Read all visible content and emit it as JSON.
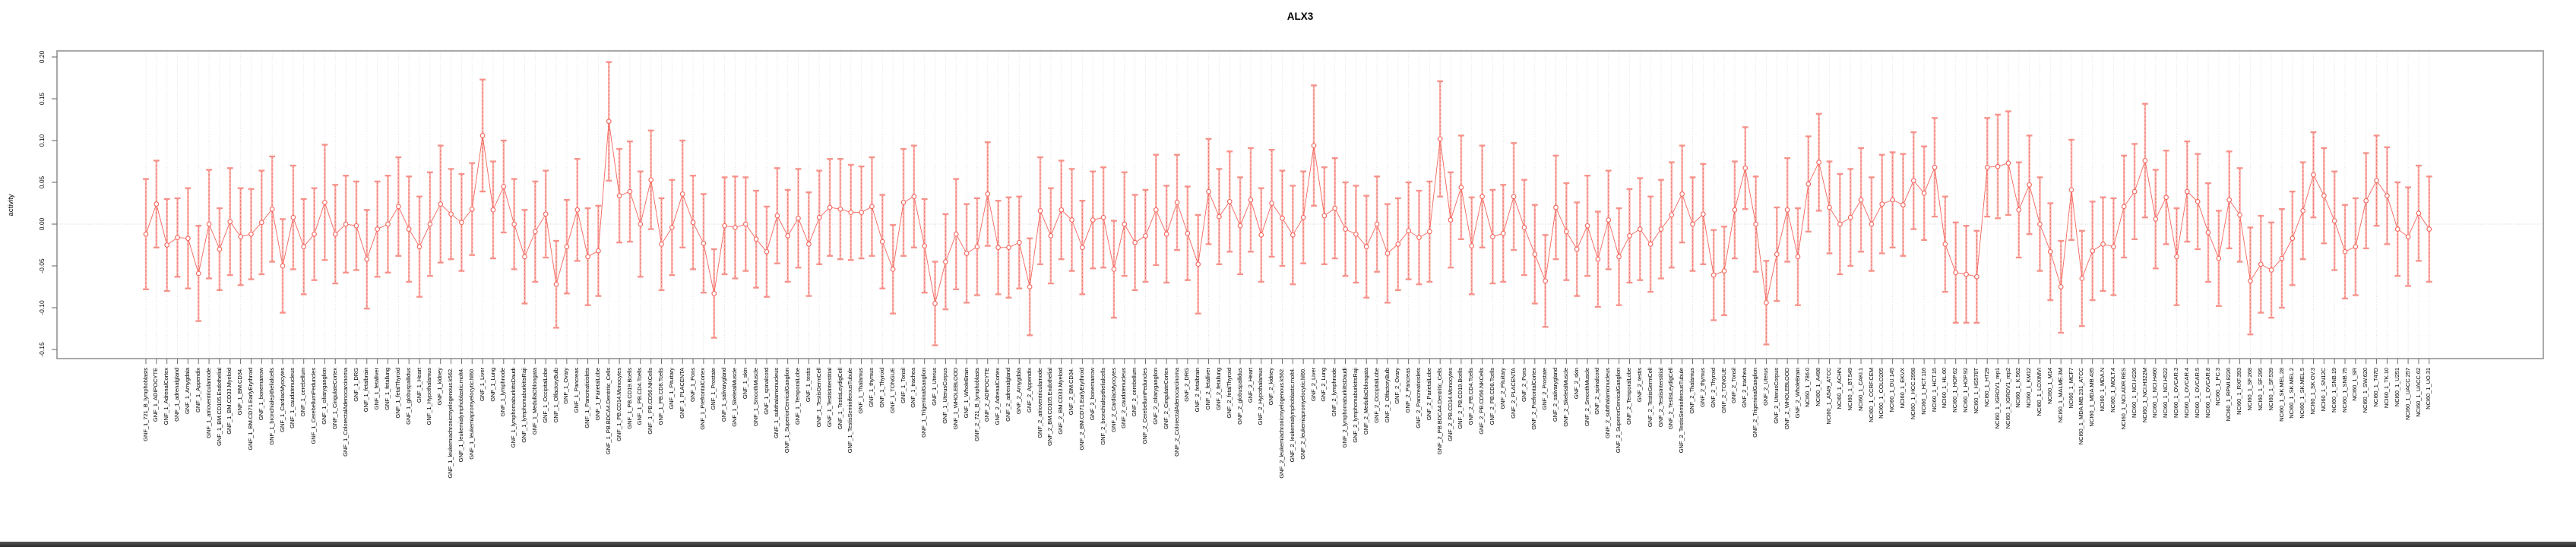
{
  "page": {
    "title": "ALX3"
  },
  "chart_data": {
    "type": "line",
    "subtype": "point-with-error-bars",
    "title": "ALX3",
    "xlabel": "",
    "ylabel": "activity",
    "ylim": [
      -0.165,
      0.205
    ],
    "ytick_labels": [
      "0.20",
      "0.15",
      "0.10",
      "0.05",
      "0.00",
      "-0.05",
      "-0.10",
      "-0.15"
    ],
    "ytick_values": [
      0.2,
      0.15,
      0.1,
      0.05,
      0.0,
      -0.05,
      -0.1,
      -0.15
    ],
    "grid": "dotted vertical line at every sample; dotted horizontal line at y=0",
    "legend_position": "none",
    "n_samples": 218,
    "colors": {
      "series": "#f4655c",
      "errorbar_heavy": "#f8aba5",
      "errorbar_dash": "#f4736a",
      "errorbar_cap": "#f69189",
      "grid": "#dcdcdc",
      "zero_line": "#cccccc",
      "box": "#9a9a9a",
      "tick": "#6e6e6e"
    },
    "categories": [
      "GNF_1_721_B_lymphoblasts",
      "GNF_1_ADIPOCYTE",
      "GNF_1_AdrenalCortex",
      "GNF_1_adrenalgland",
      "GNF_1_Amygdala",
      "GNF_1_Appendix",
      "GNF_1_atrioventricularnode",
      "GNF_1_BM.CD105.Endothelial",
      "GNF_1_BM.CD33.Myeloid",
      "GNF_1_BM.CD34.",
      "GNF_1_BM.CD71.EarlyErythroid",
      "GNF_1_bonemarrow",
      "GNF_1_bronchialepithelialcells",
      "GNF_1_CardiacMyocytes",
      "GNF_1_caudatenucleus",
      "GNF_1_cerebellum",
      "GNF_1_CerebellumPeduncles",
      "GNF_1_ciliaryganglion",
      "GNF_1_CingulateCortex",
      "GNF_1_ColorectalAdenocarcinoma",
      "GNF_1_DRG",
      "GNF_1_fetalbrain",
      "GNF_1_fetalliver",
      "GNF_1_fetallung",
      "GNF_1_fetalThyroid",
      "GNF_1_globuspallidus",
      "GNF_1_Heart",
      "GNF_1_Hypothalamus",
      "GNF_1_kidney",
      "GNF_1_leukemiachronicmyelogenous.k562.",
      "GNF_1_leukemialymphoblastic.molt4.",
      "GNF_1_leukemiapromyelocytic.hl60.",
      "GNF_1_Liver",
      "GNF_1_Lung",
      "GNF_1_lymphnode",
      "GNF_1_lymphomaburkittsDaudi",
      "GNF_1_lymphomaburkittsRaji",
      "GNF_1_MedullaOblongata",
      "GNF_1_OccipitalLobe",
      "GNF_1_OlfactoryBulb",
      "GNF_1_Ovary",
      "GNF_1_Pancreas",
      "GNF_1_Pancreaticislets",
      "GNF_1_ParietalLobe",
      "GNF_1_PB.BDCA4.Dentritic_Cells",
      "GNF_1_PB.CD14.Monocytes",
      "GNF_1_PB.CD19.Bcells",
      "GNF_1_PB.CD4.Tcells",
      "GNF_1_PB.CD56.NKCells",
      "GNF_1_PB.CD8.Tcells",
      "GNF_1_Pituitary",
      "GNF_1_PLACENTA",
      "GNF_1_Pons",
      "GNF_1_PrefrontalCortex",
      "GNF_1_Prostate",
      "GNF_1_salivarygland",
      "GNF_1_SkeletalMuscle",
      "GNF_1_skin",
      "GNF_1_SmoothMuscle",
      "GNF_1_spinalcord",
      "GNF_1_subthalamicnucleus",
      "GNF_1_SuperiorCervicalGanglion",
      "GNF_1_TemporalLobe",
      "GNF_1_testis",
      "GNF_1_TestisGermCell",
      "GNF_1_TestisInterstitial",
      "GNF_1_TestisLeydigCell",
      "GNF_1_TestisSeminiferousTubule",
      "GNF_1_Thalamus",
      "GNF_1_thymus",
      "GNF_1_Thyroid",
      "GNF_1_TONGUE",
      "GNF_1_Tonsil",
      "GNF_1_trachea",
      "GNF_1_TrigeminalGanglion",
      "GNF_1_Uterus",
      "GNF_1_UterusCorpus",
      "GNF_1_WHOLEBLOOD",
      "GNF_1_WholeBrain",
      "GNF_2_721_B_lymphoblasts",
      "GNF_2_ADIPOCYTE",
      "GNF_2_AdrenalCortex",
      "GNF_2_adrenalgland",
      "GNF_2_Amygdala",
      "GNF_2_Appendix",
      "GNF_2_atrioventricularnode",
      "GNF_2_BM.CD105.Endothelial",
      "GNF_2_BM.CD33.Myeloid",
      "GNF_2_BM.CD34.",
      "GNF_2_BM.CD71.EarlyErythroid",
      "GNF_2_bonemarrow",
      "GNF_2_bronchialepithelialcells",
      "GNF_2_CardiacMyocytes",
      "GNF_2_caudatenucleus",
      "GNF_2_cerebellum",
      "GNF_2_CerebellumPeduncles",
      "GNF_2_ciliaryganglion",
      "GNF_2_CingulateCortex",
      "GNF_2_ColorectalAdenocarcinoma",
      "GNF_2_DRG",
      "GNF_2_fetalbrain",
      "GNF_2_fetalliver",
      "GNF_2_fetallung",
      "GNF_2_fetalThyroid",
      "GNF_2_globuspallidus",
      "GNF_2_Heart",
      "GNF_2_Hypothalamus",
      "GNF_2_kidney",
      "GNF_2_leukemiachronicmyelogenous.k562.",
      "GNF_2_leukemialymphoblastic.molt4.",
      "GNF_2_leukemiapromyelocytic.hl60.",
      "GNF_2_Liver",
      "GNF_2_Lung",
      "GNF_2_lymphnode",
      "GNF_2_lymphomaburkittsDaudi",
      "GNF_2_lymphomaburkittsRaji",
      "GNF_2_MedullaOblongata",
      "GNF_2_OccipitalLobe",
      "GNF_2_OlfactoryBulb",
      "GNF_2_Ovary",
      "GNF_2_Pancreas",
      "GNF_2_Pancreaticislets",
      "GNF_2_ParietalLobe",
      "GNF_2_PB.BDCA4.Dentritic_Cells",
      "GNF_2_PB.CD14.Monocytes",
      "GNF_2_PB.CD19.Bcells",
      "GNF_2_PB.CD4.Tcells",
      "GNF_2_PB.CD56.NKCells",
      "GNF_2_PB.CD8.Tcells",
      "GNF_2_Pituitary",
      "GNF_2_PLACENTA",
      "GNF_2_Pons",
      "GNF_2_PrefrontalCortex",
      "GNF_2_Prostate",
      "GNF_2_salivarygland",
      "GNF_2_SkeletalMuscle",
      "GNF_2_skin",
      "GNF_2_SmoothMuscle",
      "GNF_2_spinalcord",
      "GNF_2_subthalamicnucleus",
      "GNF_2_SuperiorCervicalGanglion",
      "GNF_2_TemporalLobe",
      "GNF_2_testis",
      "GNF_2_TestisGermCell",
      "GNF_2_TestisInterstitial",
      "GNF_2_TestisLeydigCell",
      "GNF_2_TestisSeminiferousTubule",
      "GNF_2_Thalamus",
      "GNF_2_thymus",
      "GNF_2_Thyroid",
      "GNF_2_TONGUE",
      "GNF_2_Tonsil",
      "GNF_2_trachea",
      "GNF_2_TrigeminalGanglion",
      "GNF_2_Uterus",
      "GNF_2_UterusCorpus",
      "GNF_2_WHOLEBLOOD",
      "GNF_2_WholeBrain",
      "NCI60_1_786.0",
      "NCI60_1_A498",
      "NCI60_1_A549_ATCC",
      "NCI60_1_ACHN",
      "NCI60_1_BT.549",
      "NCI60_1_CAKI.1",
      "NCI60_1_CCRF.CEM",
      "NCI60_1_COLO205",
      "NCI60_1_DU.145",
      "NCI60_1_EKVX",
      "NCI60_1_HCC.2998",
      "NCI60_1_HCT.116",
      "NCI60_1_HCT.15",
      "NCI60_1_HL.60",
      "NCI60_1_HOP.62",
      "NCI60_1_HOP.92",
      "NCI60_1_HS578T",
      "NCI60_1_HT29",
      "NCI60_1_IGROV1_rep1",
      "NCI60_1_IGROV1_rep2",
      "NCI60_1_K.562",
      "NCI60_1_KM12",
      "NCI60_1_LOXIMVI",
      "NCI60_1_M14",
      "NCI60_1_MALME.3M",
      "NCI60_1_MCF7",
      "NCI60_1_MDA.MB.231_ATCC",
      "NCI60_1_MDA.MB.435",
      "NCI60_1_MDA.N",
      "NCI60_1_MOLT.4",
      "NCI60_1_NCI.ADR.RES",
      "NCI60_1_NCI.H226",
      "NCI60_1_NCI.H322M",
      "NCI60_1_NCI.H460",
      "NCI60_1_NCI.H522",
      "NCI60_1_OVCAR.3",
      "NCI60_1_OVCAR.4",
      "NCI60_1_OVCAR.5",
      "NCI60_1_OVCAR.8",
      "NCI60_1_PC.3",
      "NCI60_1_RPMI.8226",
      "NCI60_1_RXF.393",
      "NCI60_1_SF.268",
      "NCI60_1_SF.295",
      "NCI60_1_SF.539",
      "NCI60_1_SK.MEL.28",
      "NCI60_1_SK.MEL.2",
      "NCI60_1_SK.MEL.5",
      "NCI60_1_SK.OV.3",
      "NCI60_1_SN12C",
      "NCI60_1_SNB.19",
      "NCI60_1_SNB.75",
      "NCI60_1_SR",
      "NCI60_1_SW.620",
      "NCI60_1_T47D",
      "NCI60_1_TK.10",
      "NCI60_1_U251",
      "NCI60_1_UACC.257",
      "NCI60_1_UACC.62",
      "NCI60_1_UO.31"
    ],
    "means": [
      -0.012,
      0.024,
      -0.025,
      -0.016,
      -0.017,
      -0.059,
      0.0,
      -0.03,
      0.003,
      -0.015,
      -0.012,
      0.002,
      0.018,
      -0.05,
      0.008,
      -0.027,
      -0.012,
      0.026,
      -0.012,
      0.0,
      -0.002,
      -0.042,
      -0.006,
      0.0,
      0.021,
      -0.006,
      -0.027,
      0.0,
      0.024,
      0.012,
      0.002,
      0.018,
      0.106,
      0.017,
      0.045,
      0.0,
      -0.039,
      -0.009,
      0.012,
      -0.072,
      -0.027,
      0.017,
      -0.039,
      -0.032,
      0.123,
      0.034,
      0.039,
      0.0,
      0.053,
      -0.024,
      -0.004,
      0.036,
      0.002,
      -0.023,
      -0.083,
      -0.002,
      -0.004,
      0.0,
      -0.018,
      -0.033,
      0.01,
      -0.014,
      0.007,
      -0.024,
      0.008,
      0.02,
      0.018,
      0.014,
      0.014,
      0.021,
      -0.021,
      -0.054,
      0.026,
      0.033,
      -0.026,
      -0.095,
      -0.045,
      -0.012,
      -0.035,
      -0.027,
      0.036,
      -0.028,
      -0.028,
      -0.022,
      -0.075,
      0.016,
      -0.014,
      0.017,
      0.005,
      -0.028,
      0.005,
      0.008,
      -0.054,
      0.0,
      -0.022,
      -0.014,
      0.017,
      -0.012,
      0.026,
      -0.011,
      -0.048,
      0.039,
      0.009,
      0.027,
      -0.002,
      0.029,
      -0.013,
      0.025,
      0.007,
      -0.013,
      0.008,
      0.094,
      0.01,
      0.019,
      -0.006,
      -0.012,
      -0.027,
      0.0,
      -0.035,
      -0.024,
      -0.008,
      -0.016,
      -0.009,
      0.102,
      0.005,
      0.044,
      -0.026,
      0.033,
      -0.015,
      -0.011,
      0.033,
      -0.004,
      -0.036,
      -0.068,
      0.02,
      -0.009,
      -0.03,
      -0.002,
      -0.042,
      0.005,
      -0.039,
      -0.014,
      -0.006,
      -0.024,
      -0.006,
      0.011,
      0.036,
      0.0,
      0.012,
      -0.061,
      -0.056,
      0.017,
      0.067,
      0.0,
      -0.094,
      -0.036,
      0.017,
      -0.039,
      0.048,
      0.074,
      0.02,
      0.0,
      0.008,
      0.029,
      0.0,
      0.024,
      0.029,
      0.023,
      0.052,
      0.037,
      0.068,
      -0.024,
      -0.058,
      -0.06,
      -0.063,
      0.068,
      0.069,
      0.073,
      0.017,
      0.047,
      0.0,
      -0.033,
      -0.075,
      0.041,
      -0.065,
      -0.032,
      -0.024,
      -0.027,
      0.021,
      0.039,
      0.076,
      0.006,
      0.032,
      -0.039,
      0.039,
      0.027,
      -0.01,
      -0.041,
      0.029,
      0.011,
      -0.068,
      -0.048,
      -0.055,
      -0.041,
      -0.017,
      0.016,
      0.059,
      0.034,
      0.004,
      -0.033,
      -0.027,
      0.028,
      0.052,
      0.034,
      -0.006,
      -0.015,
      0.013,
      -0.006
    ],
    "errors": [
      0.066,
      0.052,
      0.055,
      0.047,
      0.06,
      0.057,
      0.065,
      0.049,
      0.064,
      0.058,
      0.054,
      0.062,
      0.063,
      0.056,
      0.062,
      0.057,
      0.055,
      0.069,
      0.059,
      0.058,
      0.053,
      0.059,
      0.057,
      0.058,
      0.059,
      0.063,
      0.06,
      0.062,
      0.07,
      0.054,
      0.058,
      0.055,
      0.067,
      0.058,
      0.055,
      0.054,
      0.056,
      0.06,
      0.052,
      0.052,
      0.056,
      0.061,
      0.058,
      0.054,
      0.071,
      0.056,
      0.06,
      0.063,
      0.059,
      0.055,
      0.057,
      0.064,
      0.056,
      0.059,
      0.053,
      0.058,
      0.061,
      0.056,
      0.058,
      0.054,
      0.057,
      0.055,
      0.059,
      0.062,
      0.056,
      0.058,
      0.06,
      0.057,
      0.055,
      0.059,
      0.056,
      0.053,
      0.064,
      0.061,
      0.056,
      0.05,
      0.057,
      0.066,
      0.059,
      0.058,
      0.062,
      0.056,
      0.06,
      0.055,
      0.058,
      0.064,
      0.057,
      0.059,
      0.061,
      0.056,
      0.058,
      0.06,
      0.058,
      0.062,
      0.057,
      0.055,
      0.066,
      0.058,
      0.057,
      0.056,
      0.059,
      0.063,
      0.057,
      0.06,
      0.058,
      0.062,
      0.056,
      0.064,
      0.057,
      0.059,
      0.055,
      0.072,
      0.058,
      0.06,
      0.056,
      0.058,
      0.061,
      0.057,
      0.059,
      0.055,
      0.058,
      0.056,
      0.06,
      0.069,
      0.057,
      0.062,
      0.058,
      0.061,
      0.056,
      0.058,
      0.064,
      0.057,
      0.059,
      0.055,
      0.062,
      0.058,
      0.056,
      0.06,
      0.057,
      0.059,
      0.058,
      0.056,
      0.061,
      0.057,
      0.059,
      0.063,
      0.058,
      0.056,
      0.06,
      0.054,
      0.053,
      0.058,
      0.049,
      0.057,
      0.05,
      0.056,
      0.062,
      0.058,
      0.057,
      0.058,
      0.055,
      0.06,
      0.058,
      0.062,
      0.056,
      0.059,
      0.057,
      0.061,
      0.058,
      0.056,
      0.059,
      0.057,
      0.06,
      0.058,
      0.055,
      0.059,
      0.062,
      0.062,
      0.057,
      0.059,
      0.056,
      0.058,
      0.055,
      0.06,
      0.057,
      0.059,
      0.056,
      0.058,
      0.061,
      0.057,
      0.068,
      0.059,
      0.056,
      0.058,
      0.06,
      0.057,
      0.059,
      0.057,
      0.058,
      0.056,
      0.064,
      0.058,
      0.057,
      0.059,
      0.056,
      0.058,
      0.051,
      0.057,
      0.059,
      0.056,
      0.058,
      0.057,
      0.054,
      0.058,
      0.056,
      0.059,
      0.057,
      0.063
    ]
  }
}
